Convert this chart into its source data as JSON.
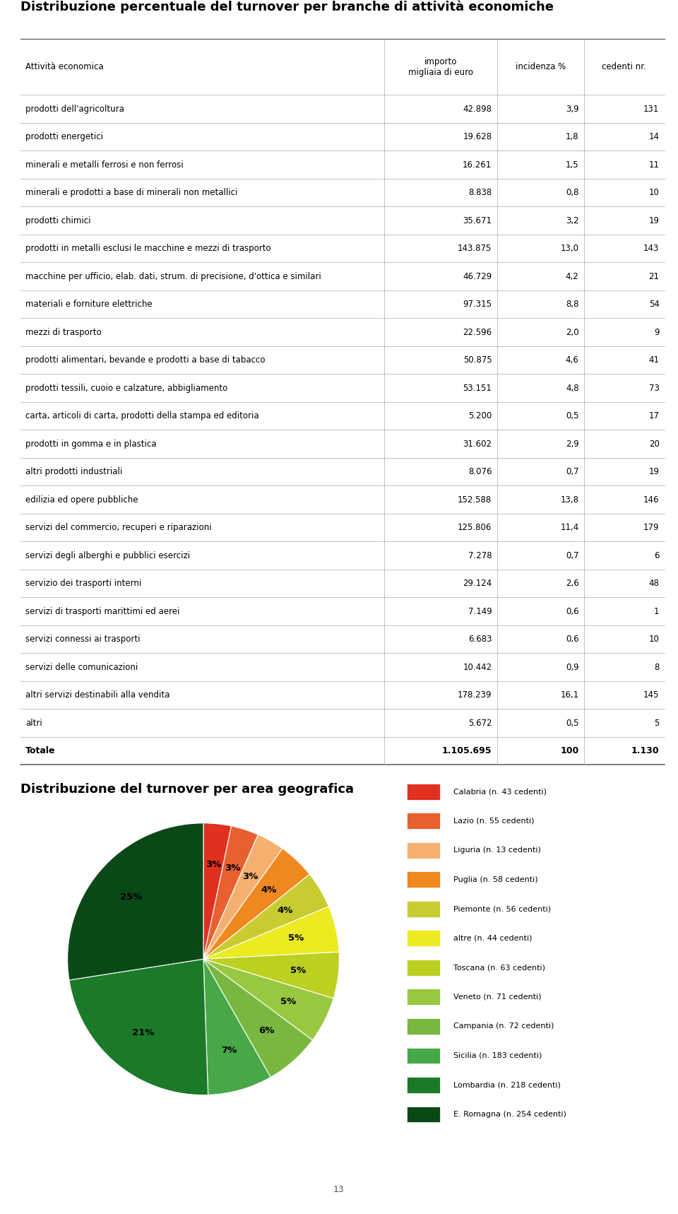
{
  "title_table": "Distribuzione percentuale del turnover per branche di attività economiche",
  "title_pie": "Distribuzione del turnover per area geografica",
  "col_headers": [
    "Attività economica",
    "importo\nmigliaia di euro",
    "incidenza %",
    "cedenti nr."
  ],
  "rows": [
    [
      "prodotti dell'agricoltura",
      "42.898",
      "3,9",
      "131"
    ],
    [
      "prodotti energetici",
      "19.628",
      "1,8",
      "14"
    ],
    [
      "minerali e metalli ferrosi e non ferrosi",
      "16.261",
      "1,5",
      "11"
    ],
    [
      "minerali e prodotti a base di minerali non metallici",
      "8.838",
      "0,8",
      "10"
    ],
    [
      "prodotti chimici",
      "35.671",
      "3,2",
      "19"
    ],
    [
      "prodotti in metalli esclusi le macchine e mezzi di trasporto",
      "143.875",
      "13,0",
      "143"
    ],
    [
      "macchine per ufficio, elab. dati, strum. di precisione, d'ottica e similari",
      "46.729",
      "4,2",
      "21"
    ],
    [
      "materiali e forniture elettriche",
      "97.315",
      "8,8",
      "54"
    ],
    [
      "mezzi di trasporto",
      "22.596",
      "2,0",
      "9"
    ],
    [
      "prodotti alimentari, bevande e prodotti a base di tabacco",
      "50.875",
      "4,6",
      "41"
    ],
    [
      "prodotti tessili, cuoio e calzature, abbigliamento",
      "53.151",
      "4,8",
      "73"
    ],
    [
      "carta, articoli di carta, prodotti della stampa ed editoria",
      "5.200",
      "0,5",
      "17"
    ],
    [
      "prodotti in gomma e in plastica",
      "31.602",
      "2,9",
      "20"
    ],
    [
      "altri prodotti industriali",
      "8.076",
      "0,7",
      "19"
    ],
    [
      "edilizia ed opere pubbliche",
      "152.588",
      "13,8",
      "146"
    ],
    [
      "servizi del commercio, recuperi e riparazioni",
      "125.806",
      "11,4",
      "179"
    ],
    [
      "servizi degli alberghi e pubblici esercizi",
      "7.278",
      "0,7",
      "6"
    ],
    [
      "servizio dei trasporti interni",
      "29.124",
      "2,6",
      "48"
    ],
    [
      "servizi di trasporti marittimi ed aerei",
      "7.149",
      "0,6",
      "1"
    ],
    [
      "servizi connessi ai trasporti",
      "6.683",
      "0,6",
      "10"
    ],
    [
      "servizi delle comunicazioni",
      "10.442",
      "0,9",
      "8"
    ],
    [
      "altri servizi destinabili alla vendita",
      "178.239",
      "16,1",
      "145"
    ],
    [
      "altri",
      "5.672",
      "0,5",
      "5"
    ]
  ],
  "totale_row": [
    "Totale",
    "1.105.695",
    "100",
    "1.130"
  ],
  "pie_labels": [
    "Calabria (n. 43 cedenti)",
    "Lazio (n. 55 cedenti)",
    "Liguria (n. 13 cedenti)",
    "Puglia (n. 58 cedenti)",
    "Piemonte (n. 56 cedenti)",
    "altre (n. 44 cedenti)",
    "Toscana (n. 63 cedenti)",
    "Veneto (n. 71 cedenti)",
    "Campania (n. 72 cedenti)",
    "Sicilia (n. 183 cedenti)",
    "Lombardia (n. 218 cedenti)",
    "E. Romagna (n. 254 cedenti)"
  ],
  "pie_sizes": [
    3,
    3,
    3,
    4,
    4,
    5,
    5,
    5,
    6,
    7,
    21,
    25
  ],
  "pie_colors": [
    "#e03020",
    "#e86030",
    "#f5b070",
    "#f08820",
    "#c8cc30",
    "#ecea20",
    "#bbd020",
    "#98c840",
    "#78b840",
    "#48a848",
    "#1a7a28",
    "#0a4818"
  ],
  "page_number": "13",
  "background_color": "#ffffff",
  "line_color": "#aaaaaa",
  "bold_line_color": "#666666",
  "title_color": "#000000",
  "body_text_color": "#000000"
}
